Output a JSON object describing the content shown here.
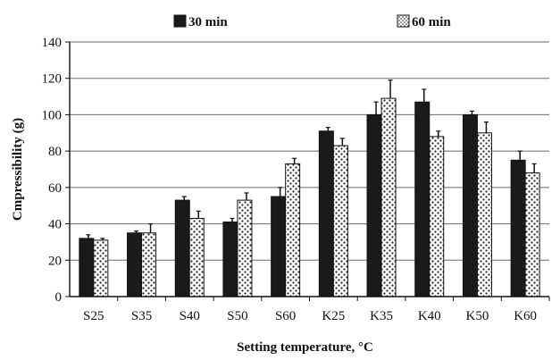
{
  "chart_data": {
    "type": "bar",
    "xlabel": "Setting temperature, °C",
    "ylabel": "Cmpressibility  (g)",
    "ylim": [
      0,
      140
    ],
    "yticks": [
      0,
      20,
      40,
      60,
      80,
      100,
      120,
      140
    ],
    "grid": true,
    "legend_placement": "top",
    "categories": [
      "S25",
      "S35",
      "S40",
      "S50",
      "S60",
      "K25",
      "K35",
      "K40",
      "K50",
      "K60"
    ],
    "series": [
      {
        "name": "30 min",
        "pattern": "solid-dark",
        "color": "#1a1a1a",
        "values": [
          32,
          35,
          53,
          41,
          55,
          91,
          100,
          107,
          100,
          75
        ],
        "errors": [
          2,
          1,
          2,
          2,
          5,
          2,
          7,
          7,
          2,
          5
        ]
      },
      {
        "name": "60 min",
        "pattern": "dotted-light",
        "color": "#333333",
        "values": [
          31,
          35,
          43,
          53,
          73,
          83,
          109,
          88,
          90,
          68
        ],
        "errors": [
          1,
          5,
          4,
          4,
          3,
          4,
          10,
          3,
          6,
          5
        ]
      }
    ]
  }
}
